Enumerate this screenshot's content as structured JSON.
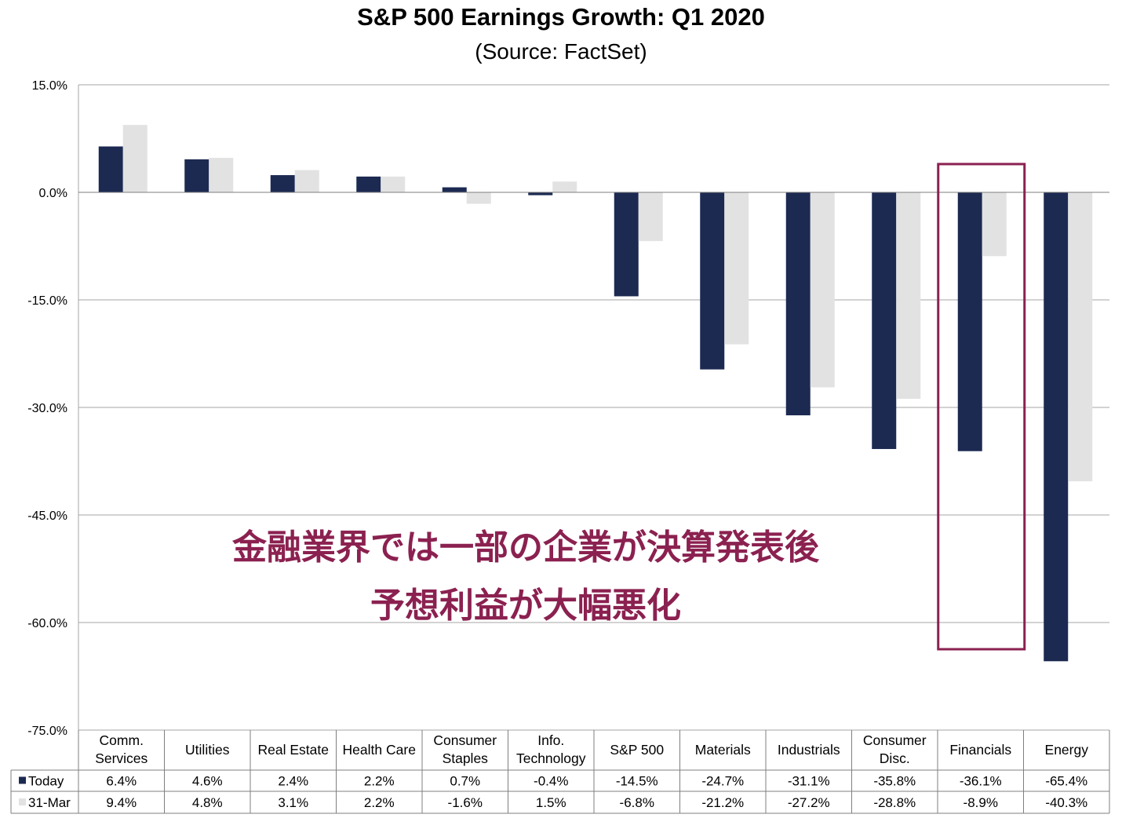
{
  "chart_data": {
    "type": "bar",
    "title": "S&P 500 Earnings Growth:  Q1 2020",
    "subtitle": "(Source: FactSet)",
    "categories": [
      [
        "Comm.",
        "Services"
      ],
      [
        "Utilities"
      ],
      [
        "Real Estate"
      ],
      [
        "Health Care"
      ],
      [
        "Consumer",
        "Staples"
      ],
      [
        "Info.",
        "Technology"
      ],
      [
        "S&P 500"
      ],
      [
        "Materials"
      ],
      [
        "Industrials"
      ],
      [
        "Consumer",
        "Disc."
      ],
      [
        "Financials"
      ],
      [
        "Energy"
      ]
    ],
    "series": [
      {
        "name": "Today",
        "color": "#1c2a52",
        "values": [
          6.4,
          4.6,
          2.4,
          2.2,
          0.7,
          -0.4,
          -14.5,
          -24.7,
          -31.1,
          -35.8,
          -36.1,
          -65.4
        ],
        "labels": [
          "6.4%",
          "4.6%",
          "2.4%",
          "2.2%",
          "0.7%",
          "-0.4%",
          "-14.5%",
          "-24.7%",
          "-31.1%",
          "-35.8%",
          "-36.1%",
          "-65.4%"
        ]
      },
      {
        "name": "31-Mar",
        "color": "#e2e2e2",
        "values": [
          9.4,
          4.8,
          3.1,
          2.2,
          -1.6,
          1.5,
          -6.8,
          -21.2,
          -27.2,
          -28.8,
          -8.9,
          -40.3
        ],
        "labels": [
          "9.4%",
          "4.8%",
          "3.1%",
          "2.2%",
          "-1.6%",
          "1.5%",
          "-6.8%",
          "-21.2%",
          "-27.2%",
          "-28.8%",
          "-8.9%",
          "-40.3%"
        ]
      }
    ],
    "ylim": [
      -75,
      15
    ],
    "yticks": [
      15,
      0,
      -15,
      -30,
      -45,
      -60,
      -75
    ],
    "ytick_labels": [
      "15.0%",
      "0.0%",
      "-15.0%",
      "-30.0%",
      "-45.0%",
      "-60.0%",
      "-75.0%"
    ],
    "grid": true,
    "legend": "data-table-rows",
    "annotation": {
      "lines": [
        "金融業界では一部の企業が決算発表後",
        "予想利益が大幅悪化"
      ],
      "color": "#8b2150",
      "highlight_category": "Financials"
    }
  }
}
